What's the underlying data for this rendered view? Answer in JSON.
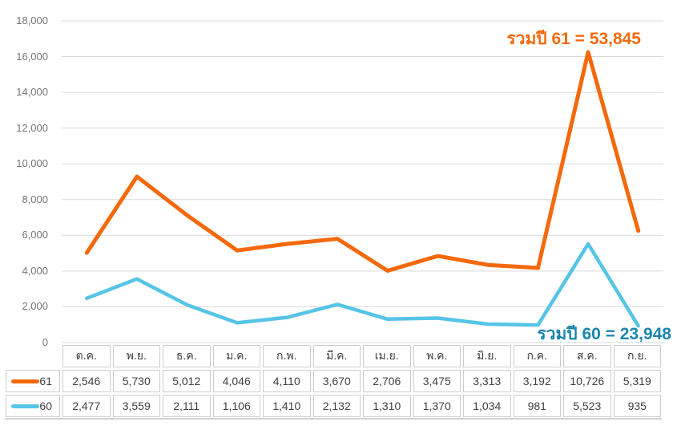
{
  "chart_data": {
    "type": "line",
    "stacked": true,
    "title": "",
    "categories": [
      "ต.ค.",
      "พ.ย.",
      "ธ.ค.",
      "ม.ค.",
      "ก.พ.",
      "มี.ค.",
      "เม.ย.",
      "พ.ค.",
      "มิ.ย.",
      "ก.ค.",
      "ส.ค.",
      "ก.ย."
    ],
    "series": [
      {
        "name": "61",
        "color": "#f4690d",
        "values": [
          2546,
          5730,
          5012,
          4046,
          4110,
          3670,
          2706,
          3475,
          3313,
          3192,
          10726,
          5319
        ]
      },
      {
        "name": "60",
        "color": "#55c4e6",
        "values": [
          2477,
          3559,
          2111,
          1106,
          1410,
          2132,
          1310,
          1370,
          1034,
          981,
          5523,
          935
        ]
      }
    ],
    "ylim": [
      0,
      18000
    ],
    "ytick_step": 2000,
    "ytick_labels": [
      "0",
      "2,000",
      "4,000",
      "6,000",
      "8,000",
      "10,000",
      "12,000",
      "14,000",
      "16,000",
      "18,000"
    ],
    "grid": true,
    "gridline_color": "#d9d9d9",
    "legend_position": "table-left",
    "annotations": [
      {
        "text": "รวมปี 61 = 53,845",
        "total": 53845,
        "color": "#f4690d"
      },
      {
        "text": "รวมปี 60 = 23,948",
        "total": 23948,
        "color": "#1c85ad"
      }
    ]
  }
}
